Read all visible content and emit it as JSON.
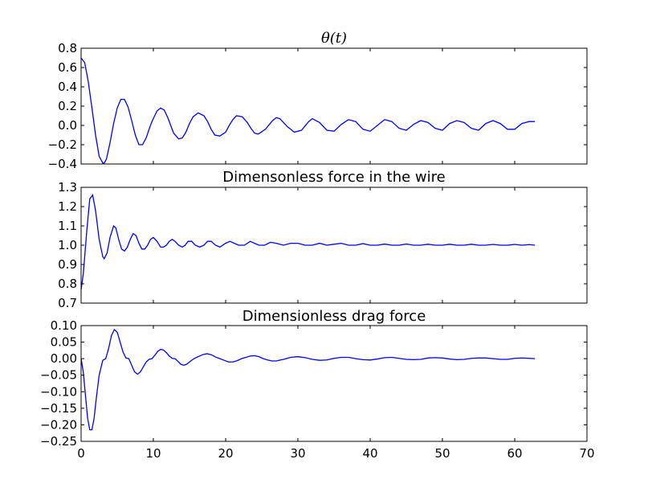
{
  "figure": {
    "line_color": "#0000ff",
    "axes_color": "#000000",
    "background": "#ffffff"
  },
  "chart_data": [
    {
      "type": "line",
      "title": "θ(t)",
      "xlabel": "",
      "ylabel": "",
      "xlim": [
        0,
        70
      ],
      "ylim": [
        -0.4,
        0.8
      ],
      "yticks": [
        -0.4,
        -0.2,
        0.0,
        0.2,
        0.4,
        0.6,
        0.8
      ],
      "ytick_labels": [
        "−0.4",
        "−0.2",
        "0.0",
        "0.2",
        "0.4",
        "0.6",
        "0.8"
      ],
      "xticks_labeled": false,
      "grid": false,
      "series": [
        {
          "x": [
            0,
            0.5,
            1.0,
            1.5,
            2.0,
            2.5,
            3.0,
            3.2,
            3.5,
            4.0,
            4.5,
            5.0,
            5.5,
            6.0,
            6.5,
            7.0,
            7.5,
            8.0,
            8.5,
            9.0,
            9.5,
            9.8,
            10.5,
            11.0,
            11.5,
            12.0,
            12.8,
            13.5,
            14.0,
            14.5,
            15.0,
            15.5,
            16.2,
            17.0,
            17.5,
            18.0,
            18.5,
            19.2,
            20.0,
            20.5,
            21.0,
            21.5,
            22.3,
            23.0,
            23.5,
            24.0,
            24.5,
            25.5,
            26.5,
            27.0,
            27.5,
            28.5,
            29.5,
            30.5,
            31.5,
            32.0,
            33.0,
            34.0,
            35.0,
            36.0,
            37.0,
            38.0,
            39.0,
            40.0,
            41.0,
            42.0,
            43.0,
            44.0,
            45.0,
            46.0,
            47.0,
            48.0,
            49.0,
            50.0,
            51.0,
            52.0,
            53.0,
            54.0,
            55.0,
            56.0,
            57.0,
            58.0,
            59.0,
            60.0,
            61.0,
            62.0,
            62.8
          ],
          "y": [
            0.7,
            0.65,
            0.45,
            0.18,
            -0.1,
            -0.32,
            -0.39,
            -0.39,
            -0.35,
            -0.18,
            0.02,
            0.18,
            0.27,
            0.27,
            0.19,
            0.05,
            -0.1,
            -0.2,
            -0.2,
            -0.13,
            -0.02,
            0.04,
            0.15,
            0.18,
            0.16,
            0.08,
            -0.08,
            -0.14,
            -0.13,
            -0.07,
            0.02,
            0.09,
            0.13,
            0.1,
            0.04,
            -0.04,
            -0.1,
            -0.11,
            -0.07,
            0.0,
            0.06,
            0.1,
            0.09,
            0.03,
            -0.03,
            -0.08,
            -0.09,
            -0.04,
            0.05,
            0.08,
            0.07,
            -0.01,
            -0.07,
            -0.05,
            0.04,
            0.07,
            0.03,
            -0.05,
            -0.06,
            0.01,
            0.06,
            0.04,
            -0.04,
            -0.06,
            0.0,
            0.06,
            0.04,
            -0.03,
            -0.05,
            0.01,
            0.05,
            0.03,
            -0.03,
            -0.05,
            0.02,
            0.05,
            0.03,
            -0.03,
            -0.05,
            0.02,
            0.05,
            0.02,
            -0.04,
            -0.04,
            0.02,
            0.04,
            0.04
          ]
        }
      ]
    },
    {
      "type": "line",
      "title": "Dimensonless force in the wire",
      "xlabel": "",
      "ylabel": "",
      "xlim": [
        0,
        70
      ],
      "ylim": [
        0.7,
        1.3
      ],
      "yticks": [
        0.7,
        0.8,
        0.9,
        1.0,
        1.1,
        1.2,
        1.3
      ],
      "ytick_labels": [
        "0.7",
        "0.8",
        "0.9",
        "1.0",
        "1.1",
        "1.2",
        "1.3"
      ],
      "xticks_labeled": false,
      "grid": false,
      "series": [
        {
          "x": [
            0,
            0.3,
            0.8,
            1.2,
            1.6,
            2.0,
            2.5,
            3.0,
            3.2,
            3.6,
            4.0,
            4.5,
            4.8,
            5.2,
            5.6,
            6.0,
            6.4,
            6.8,
            7.2,
            7.6,
            8.0,
            8.4,
            8.8,
            9.2,
            9.6,
            10.0,
            10.5,
            11.0,
            11.4,
            11.8,
            12.2,
            12.6,
            13.0,
            13.5,
            14.0,
            14.4,
            14.8,
            15.3,
            15.8,
            16.4,
            17.0,
            17.5,
            18.0,
            18.6,
            19.2,
            20.0,
            20.6,
            21.2,
            21.8,
            22.6,
            23.4,
            24.0,
            24.6,
            25.4,
            26.2,
            27.0,
            28.0,
            29.0,
            30.0,
            31.0,
            32.0,
            33.0,
            34.0,
            35.0,
            36.0,
            37.0,
            38.0,
            39.0,
            40.0,
            41.0,
            42.0,
            43.0,
            44.0,
            45.0,
            46.0,
            47.0,
            48.0,
            49.0,
            50.0,
            51.0,
            52.0,
            53.0,
            54.0,
            55.0,
            56.0,
            57.0,
            58.0,
            59.0,
            60.0,
            61.0,
            62.0,
            62.8
          ],
          "y": [
            0.77,
            0.85,
            1.08,
            1.24,
            1.26,
            1.18,
            1.03,
            0.94,
            0.93,
            0.96,
            1.04,
            1.1,
            1.09,
            1.03,
            0.98,
            0.97,
            0.99,
            1.03,
            1.06,
            1.05,
            1.01,
            0.98,
            0.98,
            1.0,
            1.03,
            1.04,
            1.02,
            0.99,
            0.99,
            1.0,
            1.02,
            1.03,
            1.02,
            1.0,
            0.99,
            1.0,
            1.02,
            1.02,
            1.0,
            0.99,
            1.0,
            1.02,
            1.02,
            1.0,
            0.99,
            1.01,
            1.02,
            1.01,
            1.0,
            1.0,
            1.02,
            1.01,
            1.0,
            1.0,
            1.015,
            1.01,
            1.0,
            1.01,
            1.01,
            1.0,
            1.0,
            1.01,
            1.0,
            1.005,
            1.01,
            1.0,
            1.0,
            1.008,
            1.0,
            1.0,
            1.006,
            1.0,
            1.0,
            1.006,
            1.0,
            1.0,
            1.005,
            1.0,
            1.0,
            1.005,
            1.0,
            1.0,
            1.005,
            1.0,
            1.0,
            1.004,
            1.0,
            1.0,
            1.004,
            1.0,
            1.003,
            1.0
          ]
        }
      ]
    },
    {
      "type": "line",
      "title": "Dimensionless drag force",
      "xlabel": "",
      "ylabel": "",
      "xlim": [
        0,
        70
      ],
      "ylim": [
        -0.25,
        0.1
      ],
      "yticks": [
        -0.25,
        -0.2,
        -0.15,
        -0.1,
        -0.05,
        0.0,
        0.05,
        0.1
      ],
      "ytick_labels": [
        "−0.25",
        "−0.20",
        "−0.15",
        "−0.10",
        "−0.05",
        "0.00",
        "0.05",
        "0.10"
      ],
      "xticks": [
        0,
        10,
        20,
        30,
        40,
        50,
        60,
        70
      ],
      "xtick_labels": [
        "0",
        "10",
        "20",
        "30",
        "40",
        "50",
        "60",
        "70"
      ],
      "grid": false,
      "series": [
        {
          "x": [
            0,
            0.3,
            0.6,
            0.9,
            1.2,
            1.5,
            1.8,
            2.1,
            2.5,
            3.0,
            3.4,
            3.8,
            4.2,
            4.6,
            5.0,
            5.4,
            5.8,
            6.2,
            6.6,
            7.0,
            7.4,
            7.8,
            8.2,
            8.6,
            9.0,
            9.4,
            9.8,
            10.2,
            10.6,
            11.0,
            11.4,
            11.8,
            12.2,
            12.6,
            13.0,
            13.4,
            13.8,
            14.2,
            14.6,
            15.0,
            15.6,
            16.2,
            16.8,
            17.4,
            18.0,
            18.6,
            19.2,
            19.8,
            20.4,
            21.0,
            21.6,
            22.2,
            22.8,
            23.4,
            24.0,
            24.6,
            25.2,
            25.8,
            26.4,
            27.0,
            28.0,
            29.0,
            30.0,
            31.0,
            32.0,
            33.0,
            34.0,
            35.0,
            36.0,
            37.0,
            38.0,
            39.0,
            40.0,
            41.0,
            42.0,
            43.0,
            44.0,
            45.0,
            46.0,
            47.0,
            48.0,
            49.0,
            50.0,
            51.0,
            52.0,
            53.0,
            54.0,
            55.0,
            56.0,
            57.0,
            58.0,
            59.0,
            60.0,
            61.0,
            62.0,
            62.8
          ],
          "y": [
            0.0,
            -0.04,
            -0.11,
            -0.18,
            -0.215,
            -0.215,
            -0.18,
            -0.12,
            -0.05,
            -0.005,
            0.0,
            0.03,
            0.07,
            0.088,
            0.08,
            0.05,
            0.02,
            0.002,
            0.0,
            -0.02,
            -0.04,
            -0.047,
            -0.04,
            -0.025,
            -0.01,
            -0.002,
            0.0,
            0.01,
            0.022,
            0.028,
            0.026,
            0.018,
            0.008,
            0.001,
            0.0,
            -0.008,
            -0.017,
            -0.02,
            -0.017,
            -0.01,
            0.0,
            0.006,
            0.012,
            0.015,
            0.012,
            0.005,
            0.0,
            -0.005,
            -0.01,
            -0.01,
            -0.006,
            0.0,
            0.004,
            0.008,
            0.009,
            0.006,
            0.0,
            -0.004,
            -0.007,
            -0.007,
            -0.002,
            0.004,
            0.006,
            0.003,
            -0.002,
            -0.005,
            -0.004,
            0.001,
            0.004,
            0.004,
            0.0,
            -0.003,
            -0.004,
            -0.001,
            0.003,
            0.004,
            0.001,
            -0.002,
            -0.003,
            -0.002,
            0.002,
            0.003,
            0.002,
            -0.001,
            -0.003,
            -0.002,
            0.001,
            0.002,
            0.002,
            0.0,
            -0.002,
            -0.002,
            0.001,
            0.002,
            0.001,
            0.0
          ]
        }
      ]
    }
  ]
}
